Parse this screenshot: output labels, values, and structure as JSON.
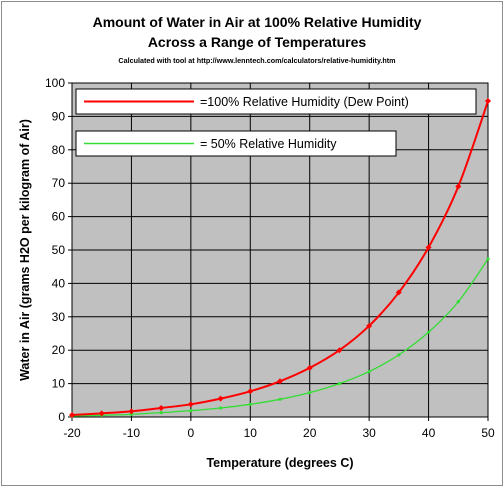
{
  "chart_data": {
    "type": "line",
    "title_lines": [
      "Amount of Water in Air at 100% Relative Humidity",
      "Across a Range of Temperatures"
    ],
    "subtitle": "Calculated with tool at http://www.lenntech.com/calculators/relative-humidity.htm",
    "xlabel": "Temperature (degrees C)",
    "ylabel": "Water in Air (grams H2O per kilogram of Air)",
    "xlim": [
      -20,
      50
    ],
    "ylim": [
      0,
      100
    ],
    "x_ticks": [
      -20,
      -10,
      0,
      10,
      20,
      30,
      40,
      50
    ],
    "y_ticks": [
      0,
      10,
      20,
      30,
      40,
      50,
      60,
      70,
      80,
      90,
      100
    ],
    "grid": true,
    "plot_background": "#c0c0c0",
    "legend_position": "top-left",
    "series": [
      {
        "name": "=100% Relative Humidity (Dew Point)",
        "color": "#ff0000",
        "marker": "diamond",
        "x": [
          -20,
          -15,
          -10,
          -5,
          0,
          5,
          10,
          15,
          20,
          25,
          30,
          35,
          40,
          45,
          50
        ],
        "y": [
          0.6,
          1.1,
          1.7,
          2.7,
          3.8,
          5.5,
          7.7,
          10.7,
          14.7,
          20.0,
          27.3,
          37.3,
          50.8,
          69.0,
          94.6
        ]
      },
      {
        "name": "=   50% Relative Humidity",
        "color": "#33dd33",
        "marker": "dot",
        "x": [
          -20,
          -15,
          -10,
          -5,
          0,
          5,
          10,
          15,
          20,
          25,
          30,
          35,
          40,
          45,
          50
        ],
        "y": [
          0.3,
          0.5,
          0.8,
          1.3,
          1.9,
          2.7,
          3.8,
          5.3,
          7.3,
          10.0,
          13.6,
          18.6,
          25.4,
          34.5,
          47.3
        ]
      }
    ]
  }
}
